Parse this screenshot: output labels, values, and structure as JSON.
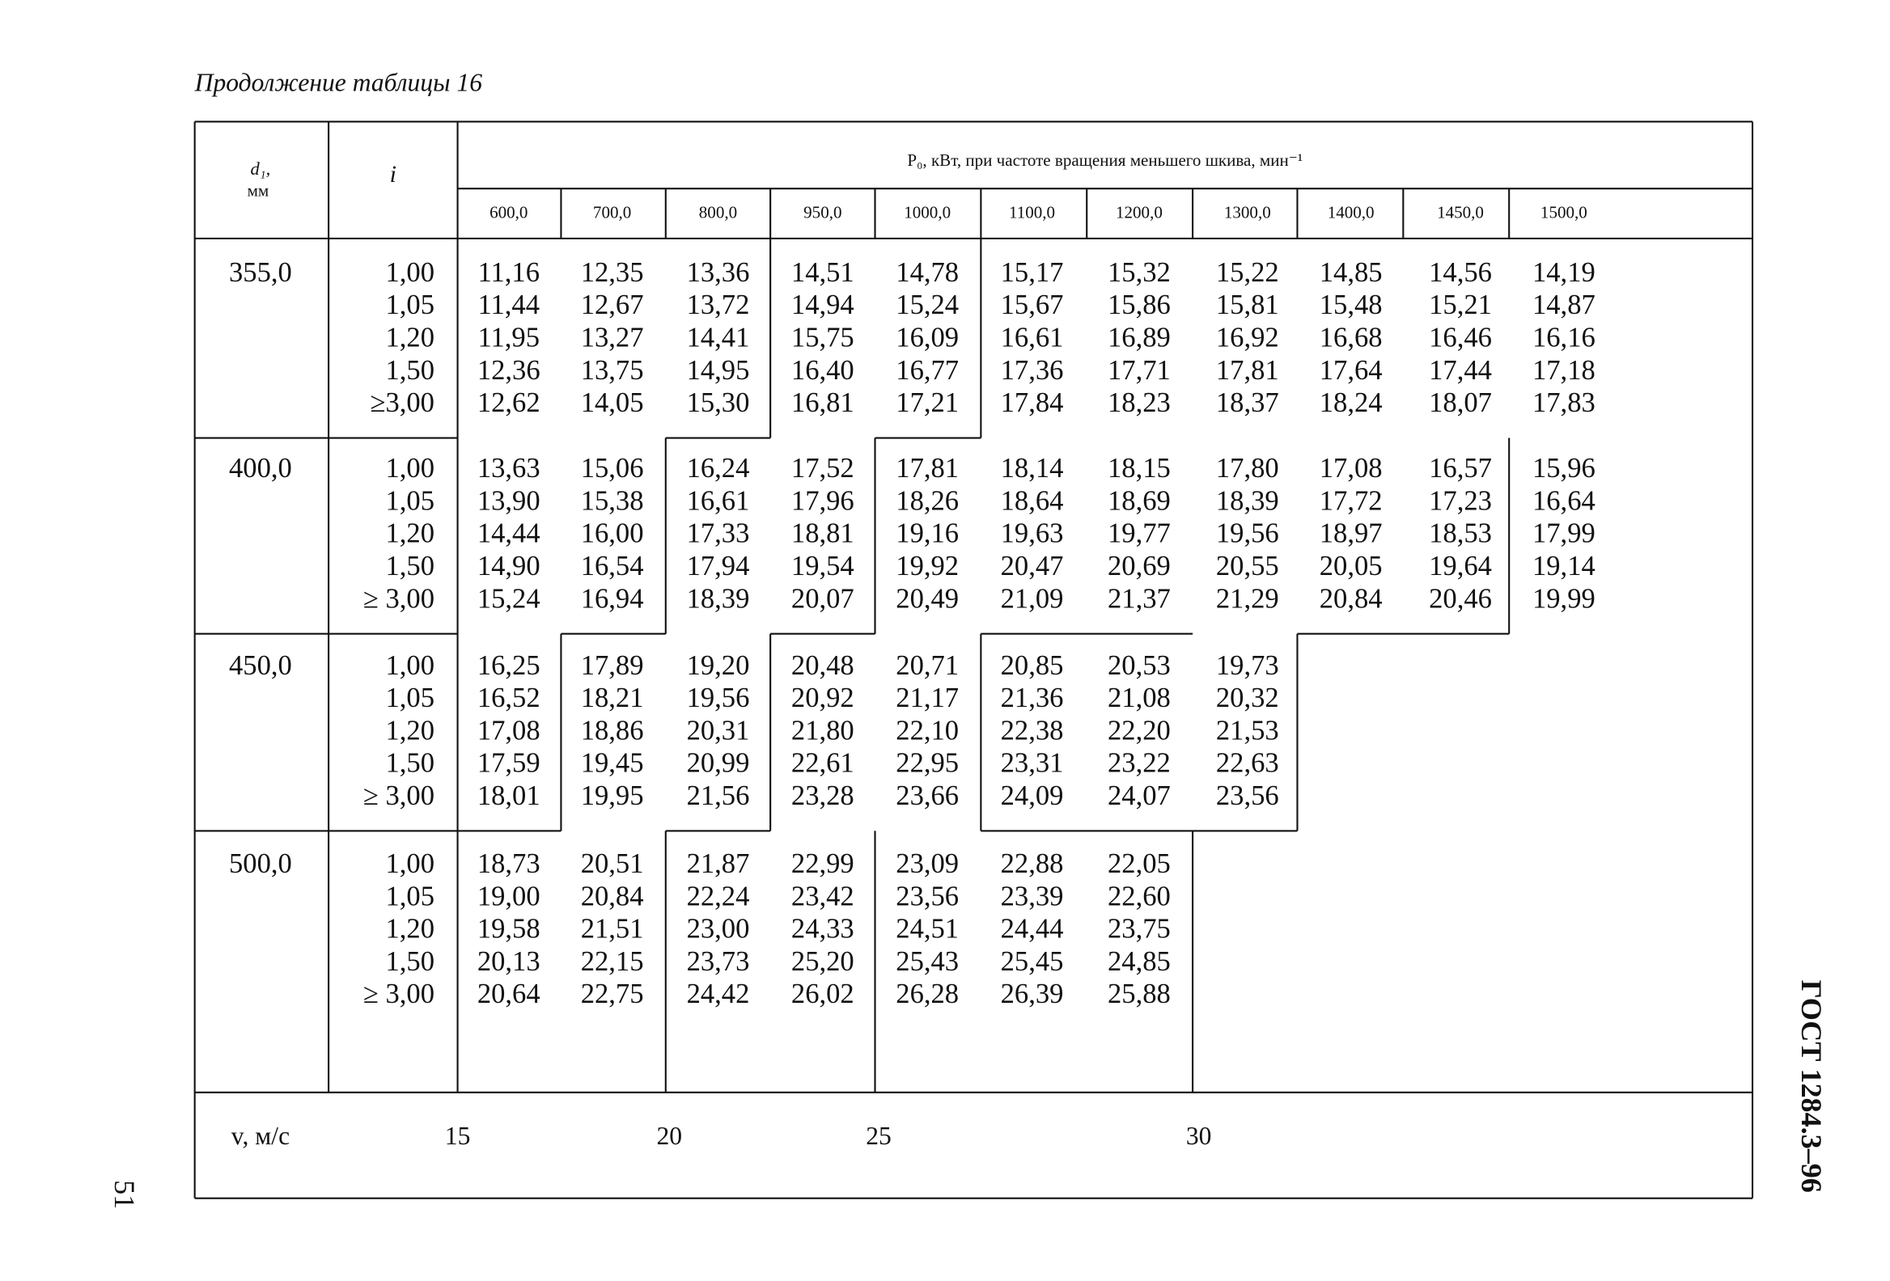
{
  "caption": "Продолжение таблицы 16",
  "header": {
    "d_label": "d₁,",
    "d_unit": "мм",
    "i_label": "i",
    "p0_label": "P₀, кВт, при частоте вращения меньшего шкива, мин⁻¹",
    "frequencies": [
      "600,0",
      "700,0",
      "800,0",
      "950,0",
      "1000,0",
      "1100,0",
      "1200,0",
      "1300,0",
      "1400,0",
      "1450,0",
      "1500,0"
    ]
  },
  "groups": [
    {
      "d": "355,0",
      "rows": [
        {
          "i": "1,00",
          "values": [
            "11,16",
            "12,35",
            "13,36",
            "14,51",
            "14,78",
            "15,17",
            "15,32",
            "15,22",
            "14,85",
            "14,56",
            "14,19"
          ]
        },
        {
          "i": "1,05",
          "values": [
            "11,44",
            "12,67",
            "13,72",
            "14,94",
            "15,24",
            "15,67",
            "15,86",
            "15,81",
            "15,48",
            "15,21",
            "14,87"
          ]
        },
        {
          "i": "1,20",
          "values": [
            "11,95",
            "13,27",
            "14,41",
            "15,75",
            "16,09",
            "16,61",
            "16,89",
            "16,92",
            "16,68",
            "16,46",
            "16,16"
          ]
        },
        {
          "i": "1,50",
          "values": [
            "12,36",
            "13,75",
            "14,95",
            "16,40",
            "16,77",
            "17,36",
            "17,71",
            "17,81",
            "17,64",
            "17,44",
            "17,18"
          ]
        },
        {
          "i": "≥3,00",
          "values": [
            "12,62",
            "14,05",
            "15,30",
            "16,81",
            "17,21",
            "17,84",
            "18,23",
            "18,37",
            "18,24",
            "18,07",
            "17,83"
          ]
        }
      ]
    },
    {
      "d": "400,0",
      "rows": [
        {
          "i": "1,00",
          "values": [
            "13,63",
            "15,06",
            "16,24",
            "17,52",
            "17,81",
            "18,14",
            "18,15",
            "17,80",
            "17,08",
            "16,57",
            "15,96"
          ]
        },
        {
          "i": "1,05",
          "values": [
            "13,90",
            "15,38",
            "16,61",
            "17,96",
            "18,26",
            "18,64",
            "18,69",
            "18,39",
            "17,72",
            "17,23",
            "16,64"
          ]
        },
        {
          "i": "1,20",
          "values": [
            "14,44",
            "16,00",
            "17,33",
            "18,81",
            "19,16",
            "19,63",
            "19,77",
            "19,56",
            "18,97",
            "18,53",
            "17,99"
          ]
        },
        {
          "i": "1,50",
          "values": [
            "14,90",
            "16,54",
            "17,94",
            "19,54",
            "19,92",
            "20,47",
            "20,69",
            "20,55",
            "20,05",
            "19,64",
            "19,14"
          ]
        },
        {
          "i": "≥ 3,00",
          "values": [
            "15,24",
            "16,94",
            "18,39",
            "20,07",
            "20,49",
            "21,09",
            "21,37",
            "21,29",
            "20,84",
            "20,46",
            "19,99"
          ]
        }
      ]
    },
    {
      "d": "450,0",
      "rows": [
        {
          "i": "1,00",
          "values": [
            "16,25",
            "17,89",
            "19,20",
            "20,48",
            "20,71",
            "20,85",
            "20,53",
            "19,73"
          ]
        },
        {
          "i": "1,05",
          "values": [
            "16,52",
            "18,21",
            "19,56",
            "20,92",
            "21,17",
            "21,36",
            "21,08",
            "20,32"
          ]
        },
        {
          "i": "1,20",
          "values": [
            "17,08",
            "18,86",
            "20,31",
            "21,80",
            "22,10",
            "22,38",
            "22,20",
            "21,53"
          ]
        },
        {
          "i": "1,50",
          "values": [
            "17,59",
            "19,45",
            "20,99",
            "22,61",
            "22,95",
            "23,31",
            "23,22",
            "22,63"
          ]
        },
        {
          "i": "≥ 3,00",
          "values": [
            "18,01",
            "19,95",
            "21,56",
            "23,28",
            "23,66",
            "24,09",
            "24,07",
            "23,56"
          ]
        }
      ]
    },
    {
      "d": "500,0",
      "rows": [
        {
          "i": "1,00",
          "values": [
            "18,73",
            "20,51",
            "21,87",
            "22,99",
            "23,09",
            "22,88",
            "22,05"
          ]
        },
        {
          "i": "1,05",
          "values": [
            "19,00",
            "20,84",
            "22,24",
            "23,42",
            "23,56",
            "23,39",
            "22,60"
          ]
        },
        {
          "i": "1,20",
          "values": [
            "19,58",
            "21,51",
            "23,00",
            "24,33",
            "24,51",
            "24,44",
            "23,75"
          ]
        },
        {
          "i": "1,50",
          "values": [
            "20,13",
            "22,15",
            "23,73",
            "25,20",
            "25,43",
            "25,45",
            "24,85"
          ]
        },
        {
          "i": "≥ 3,00",
          "values": [
            "20,64",
            "22,75",
            "24,42",
            "26,02",
            "26,28",
            "26,39",
            "25,88"
          ]
        }
      ]
    }
  ],
  "footer": {
    "v_label": "v,  м/с",
    "velocities": [
      "15",
      "20",
      "25",
      "30"
    ]
  },
  "side_label": "ГОСТ 1284.3–96",
  "page_number": "51"
}
